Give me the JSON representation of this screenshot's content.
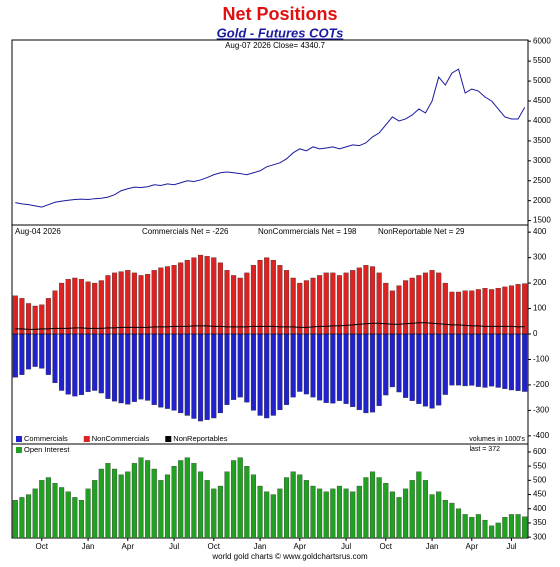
{
  "chart_data": [
    {
      "type": "line",
      "title": "Net Positions",
      "subtitle": "Gold - Futures COTs",
      "annotation": "Aug-07  2026   Close= 4340.7",
      "color": "#1a1aa0",
      "values": [
        1950,
        1920,
        1900,
        1870,
        1840,
        1900,
        1960,
        1990,
        2010,
        2030,
        2040,
        2030,
        2050,
        2060,
        2090,
        2150,
        2250,
        2300,
        2340,
        2330,
        2350,
        2400,
        2380,
        2420,
        2400,
        2450,
        2500,
        2480,
        2520,
        2580,
        2650,
        2700,
        2720,
        2700,
        2680,
        2650,
        2700,
        2750,
        2850,
        2900,
        2950,
        3050,
        3200,
        3300,
        3250,
        3350,
        3300,
        3320,
        3350,
        3300,
        3350,
        3400,
        3380,
        3450,
        3600,
        3700,
        3900,
        4100,
        4000,
        4050,
        4150,
        4300,
        4200,
        4500,
        5100,
        4900,
        5200,
        5300,
        4700,
        4800,
        4750,
        4600,
        4500,
        4300,
        4100,
        4050,
        4050,
        4340
      ],
      "ylim": [
        1390,
        6030
      ],
      "yticks": [
        1500,
        2000,
        2500,
        3000,
        3500,
        4000,
        4500,
        5000,
        5500,
        6000
      ]
    },
    {
      "type": "bar",
      "date_label": "Aug-04  2026",
      "annotations": [
        "Commercials Net = -226",
        "NonCommercials Net = 198",
        "NonReportable Net = 29"
      ],
      "note": "volumes in 1000's",
      "series": [
        {
          "name": "Commercials",
          "color": "#2222cc",
          "values": [
            -170,
            -160,
            -138,
            -128,
            -135,
            -160,
            -192,
            -222,
            -237,
            -244,
            -239,
            -227,
            -222,
            -232,
            -254,
            -264,
            -271,
            -276,
            -266,
            -256,
            -261,
            -278,
            -288,
            -293,
            -300,
            -310,
            -320,
            -332,
            -342,
            -337,
            -330,
            -310,
            -278,
            -258,
            -248,
            -268,
            -300,
            -320,
            -330,
            -320,
            -298,
            -278,
            -248,
            -226,
            -236,
            -248,
            -260,
            -270,
            -272,
            -262,
            -274,
            -286,
            -298,
            -310,
            -307,
            -282,
            -240,
            -208,
            -228,
            -250,
            -262,
            -274,
            -284,
            -292,
            -280,
            -238,
            -201,
            -201,
            -204,
            -202,
            -207,
            -210,
            -205,
            -210,
            -215,
            -220,
            -223,
            -226
          ]
        },
        {
          "name": "NonCommercials",
          "color": "#dd2222",
          "values": [
            150,
            140,
            120,
            110,
            115,
            140,
            170,
            200,
            215,
            220,
            215,
            205,
            200,
            210,
            230,
            240,
            245,
            250,
            240,
            230,
            235,
            250,
            260,
            265,
            270,
            280,
            290,
            300,
            310,
            305,
            300,
            280,
            250,
            230,
            220,
            240,
            270,
            290,
            300,
            290,
            270,
            250,
            220,
            200,
            210,
            220,
            230,
            240,
            240,
            230,
            240,
            250,
            260,
            270,
            265,
            240,
            200,
            170,
            190,
            210,
            220,
            230,
            240,
            250,
            240,
            200,
            165,
            165,
            170,
            170,
            175,
            180,
            175,
            180,
            185,
            190,
            195,
            198
          ]
        },
        {
          "name": "NonReportables",
          "color": "#000000",
          "mark": "line",
          "values": [
            20,
            20,
            18,
            18,
            20,
            20,
            22,
            22,
            22,
            24,
            24,
            22,
            22,
            22,
            24,
            24,
            26,
            26,
            26,
            26,
            26,
            28,
            28,
            28,
            30,
            30,
            30,
            32,
            32,
            32,
            30,
            30,
            28,
            28,
            28,
            28,
            30,
            30,
            30,
            30,
            28,
            28,
            28,
            26,
            26,
            28,
            30,
            30,
            32,
            32,
            34,
            36,
            38,
            40,
            42,
            42,
            40,
            38,
            38,
            40,
            42,
            44,
            44,
            42,
            40,
            38,
            36,
            36,
            34,
            32,
            32,
            30,
            30,
            30,
            30,
            30,
            28,
            29
          ]
        }
      ],
      "ylim": [
        -432,
        428
      ],
      "yticks": [
        -400,
        -300,
        -200,
        -100,
        0,
        100,
        200,
        300,
        400
      ]
    },
    {
      "type": "bar",
      "annotation": "last = 372",
      "source": "world gold charts © www.goldchartsrus.com",
      "series": [
        {
          "name": "Open Interest",
          "color": "#22a022",
          "values": [
            430,
            440,
            450,
            470,
            500,
            510,
            490,
            475,
            460,
            440,
            430,
            470,
            500,
            540,
            560,
            540,
            520,
            530,
            560,
            580,
            570,
            540,
            500,
            520,
            550,
            570,
            580,
            560,
            530,
            500,
            470,
            480,
            530,
            570,
            580,
            550,
            520,
            480,
            460,
            450,
            470,
            510,
            530,
            520,
            500,
            480,
            470,
            460,
            470,
            480,
            470,
            460,
            480,
            510,
            530,
            510,
            490,
            460,
            440,
            470,
            500,
            530,
            500,
            450,
            460,
            430,
            420,
            400,
            380,
            370,
            380,
            360,
            340,
            350,
            370,
            380,
            380,
            372
          ]
        }
      ],
      "categories": [
        null,
        null,
        null,
        null,
        "Oct",
        null,
        null,
        null,
        null,
        null,
        null,
        "Jan",
        null,
        null,
        null,
        null,
        null,
        "Apr",
        null,
        null,
        null,
        null,
        null,
        null,
        "Jul",
        null,
        null,
        null,
        null,
        null,
        "Oct",
        null,
        null,
        null,
        null,
        null,
        null,
        "Jan",
        null,
        null,
        null,
        null,
        null,
        "Apr",
        null,
        null,
        null,
        null,
        null,
        null,
        "Jul",
        null,
        null,
        null,
        null,
        null,
        "Oct",
        null,
        null,
        null,
        null,
        null,
        null,
        "Jan",
        null,
        null,
        null,
        null,
        null,
        "Apr",
        null,
        null,
        null,
        null,
        null,
        "Jul",
        null,
        null
      ],
      "ylim": [
        297,
        628
      ],
      "yticks": [
        300,
        350,
        400,
        450,
        500,
        550,
        600
      ]
    }
  ]
}
